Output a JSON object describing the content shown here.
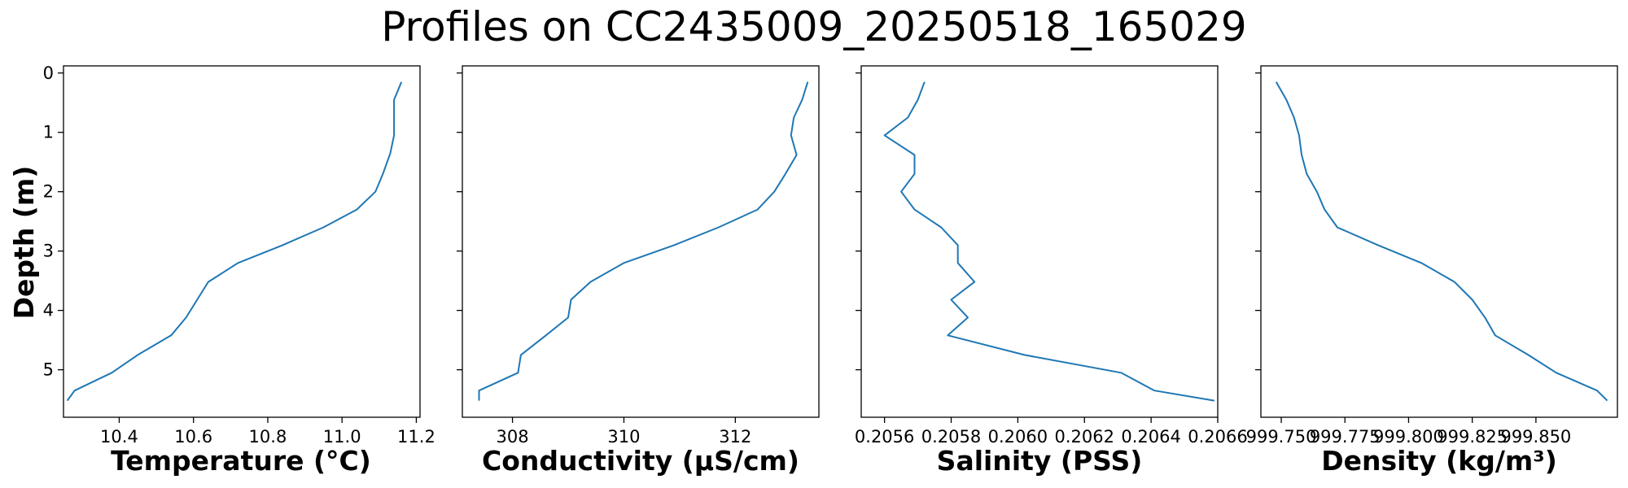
{
  "title": "Profiles on CC2435009_20250518_165029",
  "ylabel": "Depth (m)",
  "line_color": "#1f77b4",
  "chart_data": [
    {
      "type": "line",
      "xlabel": "Temperature (°C)",
      "xlim": [
        10.25,
        11.21
      ],
      "ylim": [
        5.8,
        -0.12
      ],
      "xticks": [
        "10.4",
        "10.6",
        "10.8",
        "11.0",
        "11.2"
      ],
      "yticks": [
        "0",
        "1",
        "2",
        "3",
        "4",
        "5"
      ],
      "series": [
        {
          "x": [
            11.16,
            11.14,
            11.14,
            11.14,
            11.13,
            11.11,
            11.09,
            11.04,
            10.95,
            10.84,
            10.72,
            10.64,
            10.61,
            10.58,
            10.54,
            10.45,
            10.38,
            10.28,
            10.26
          ],
          "y": [
            0.15,
            0.45,
            0.75,
            1.05,
            1.35,
            1.7,
            2.0,
            2.3,
            2.6,
            2.9,
            3.2,
            3.52,
            3.82,
            4.12,
            4.42,
            4.75,
            5.05,
            5.35,
            5.52
          ]
        }
      ]
    },
    {
      "type": "line",
      "xlabel": "Conductivity (µS/cm)",
      "xlim": [
        307.1,
        313.5
      ],
      "ylim": [
        5.8,
        -0.12
      ],
      "xticks": [
        "308",
        "310",
        "312"
      ],
      "yticks": [
        "0",
        "1",
        "2",
        "3",
        "4",
        "5"
      ],
      "series": [
        {
          "x": [
            313.3,
            313.2,
            313.05,
            313.0,
            313.0,
            313.1,
            312.9,
            312.7,
            312.4,
            311.7,
            310.9,
            310.0,
            309.4,
            309.05,
            309.0,
            308.6,
            308.15,
            308.1,
            307.4,
            307.4
          ],
          "y": [
            0.15,
            0.45,
            0.75,
            1.05,
            1.05,
            1.38,
            1.7,
            2.0,
            2.3,
            2.6,
            2.9,
            3.2,
            3.52,
            3.82,
            4.12,
            4.42,
            4.75,
            5.05,
            5.35,
            5.52
          ]
        }
      ]
    },
    {
      "type": "line",
      "xlabel": "Salinity (PSS)",
      "xlim": [
        0.20553,
        0.2066
      ],
      "ylim": [
        5.8,
        -0.12
      ],
      "xticks": [
        "0.2056",
        "0.2058",
        "0.2060",
        "0.2062",
        "0.2064",
        "0.2066"
      ],
      "yticks": [
        "0",
        "1",
        "2",
        "3",
        "4",
        "5"
      ],
      "series": [
        {
          "x": [
            0.20572,
            0.2057,
            0.20567,
            0.2056,
            0.20569,
            0.20569,
            0.20565,
            0.20569,
            0.20577,
            0.20582,
            0.20582,
            0.20587,
            0.2058,
            0.20585,
            0.20579,
            0.20602,
            0.20631,
            0.20641,
            0.20659
          ],
          "y": [
            0.15,
            0.45,
            0.75,
            1.05,
            1.38,
            1.7,
            2.0,
            2.3,
            2.6,
            2.9,
            3.2,
            3.52,
            3.82,
            4.12,
            4.42,
            4.75,
            5.05,
            5.35,
            5.52
          ]
        }
      ]
    },
    {
      "type": "line",
      "xlabel": "Density (kg/m³)",
      "xlim": [
        999.742,
        999.882
      ],
      "ylim": [
        5.8,
        -0.12
      ],
      "xticks": [
        "999.750",
        "999.775",
        "999.800",
        "999.825",
        "999.850"
      ],
      "yticks": [
        "0",
        "1",
        "2",
        "3",
        "4",
        "5"
      ],
      "series": [
        {
          "x": [
            999.748,
            999.752,
            999.755,
            999.757,
            999.758,
            999.76,
            999.764,
            999.767,
            999.772,
            999.788,
            999.805,
            999.818,
            999.825,
            999.83,
            999.834,
            999.847,
            999.858,
            999.874,
            999.878
          ],
          "y": [
            0.15,
            0.45,
            0.75,
            1.05,
            1.38,
            1.7,
            2.0,
            2.3,
            2.6,
            2.9,
            3.2,
            3.52,
            3.82,
            4.12,
            4.42,
            4.75,
            5.05,
            5.35,
            5.52
          ]
        }
      ]
    }
  ]
}
